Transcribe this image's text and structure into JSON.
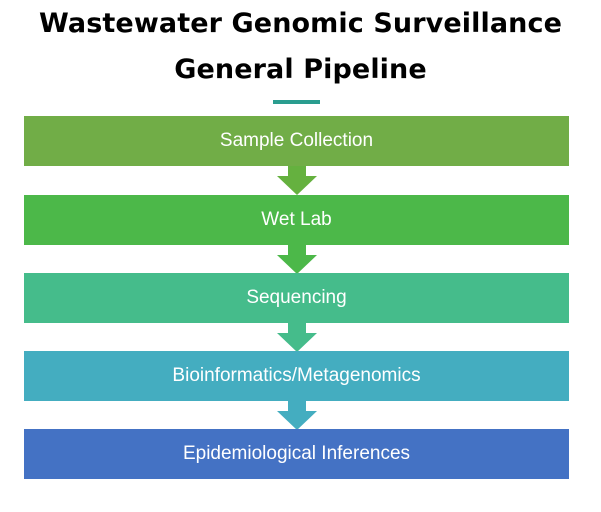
{
  "title": {
    "line1": "Wastewater Genomic Surveillance",
    "line2": "General Pipeline"
  },
  "accent_color": "#2a9d8f",
  "steps": [
    {
      "label": "Sample Collection",
      "color": "#71ad47"
    },
    {
      "label": "Wet Lab",
      "color": "#4cb849"
    },
    {
      "label": "Sequencing",
      "color": "#45bc8b"
    },
    {
      "label": "Bioinformatics/Metagenomics",
      "color": "#44adc0"
    },
    {
      "label": "Epidemiological Inferences",
      "color": "#4472c4"
    }
  ],
  "arrows": [
    {
      "icon": "down-arrow-icon",
      "color": "#65b13f"
    },
    {
      "icon": "down-arrow-icon",
      "color": "#4cb849"
    },
    {
      "icon": "down-arrow-icon",
      "color": "#45bc8b"
    },
    {
      "icon": "down-arrow-icon",
      "color": "#44adc0"
    }
  ]
}
